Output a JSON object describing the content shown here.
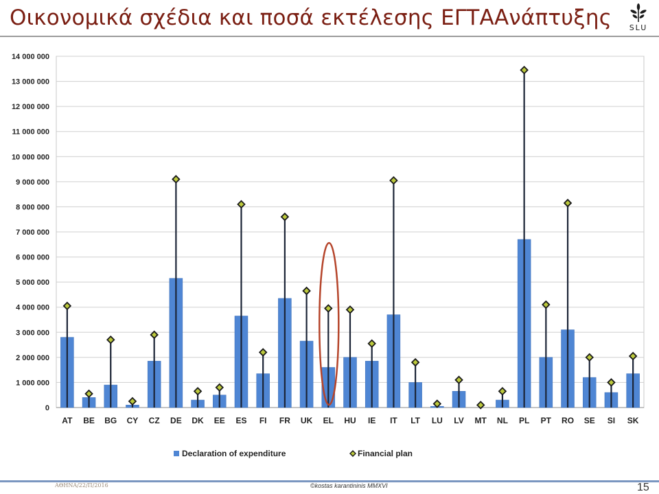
{
  "slide": {
    "title": "Οικονομικά σχέδια και ποσά εκτέλεσης ΕΓΤΑΑνάπτυξης",
    "logo_text": "SLU",
    "footer_left": "ΑΘΗΝΑ/22/Π/2016",
    "footer_center": "©kostas karantininis MMXVI",
    "page_number": "15"
  },
  "colors": {
    "title": "#7a1e12",
    "bar": "#4f86d4",
    "stem": "#1b2436",
    "marker_fill": "#bcc93c",
    "highlight": "#b5442a"
  },
  "chart_data": {
    "type": "bar",
    "categories": [
      "AT",
      "BE",
      "BG",
      "CY",
      "CZ",
      "DE",
      "DK",
      "EE",
      "ES",
      "FI",
      "FR",
      "UK",
      "EL",
      "HU",
      "IE",
      "IT",
      "LT",
      "LU",
      "LV",
      "MT",
      "NL",
      "PL",
      "PT",
      "RO",
      "SE",
      "SI",
      "SK"
    ],
    "series": [
      {
        "name": "Declaration of expenditure",
        "values": [
          2800000,
          400000,
          900000,
          100000,
          1850000,
          5150000,
          300000,
          500000,
          3650000,
          1350000,
          4350000,
          2650000,
          1600000,
          2000000,
          1850000,
          3700000,
          1000000,
          50000,
          650000,
          0,
          300000,
          6700000,
          2000000,
          3100000,
          1200000,
          600000,
          1350000
        ]
      },
      {
        "name": "Financial plan",
        "values": [
          4050000,
          550000,
          2700000,
          250000,
          2900000,
          9100000,
          650000,
          800000,
          8100000,
          2200000,
          7600000,
          4650000,
          3950000,
          3900000,
          2550000,
          9050000,
          1800000,
          150000,
          1100000,
          100000,
          650000,
          13450000,
          4100000,
          8150000,
          2000000,
          1000000,
          2050000
        ]
      }
    ],
    "yticks": [
      "0",
      "1 000 000",
      "2 000 000",
      "3 000 000",
      "4 000 000",
      "5 000 000",
      "6 000 000",
      "7 000 000",
      "8 000 000",
      "9 000 000",
      "10 000 000",
      "11 000 000",
      "12 000 000",
      "13 000 000",
      "14 000 000"
    ],
    "ylim": [
      0,
      14000000
    ],
    "grid": true,
    "legend_position": "bottom",
    "highlight_category": "EL"
  }
}
